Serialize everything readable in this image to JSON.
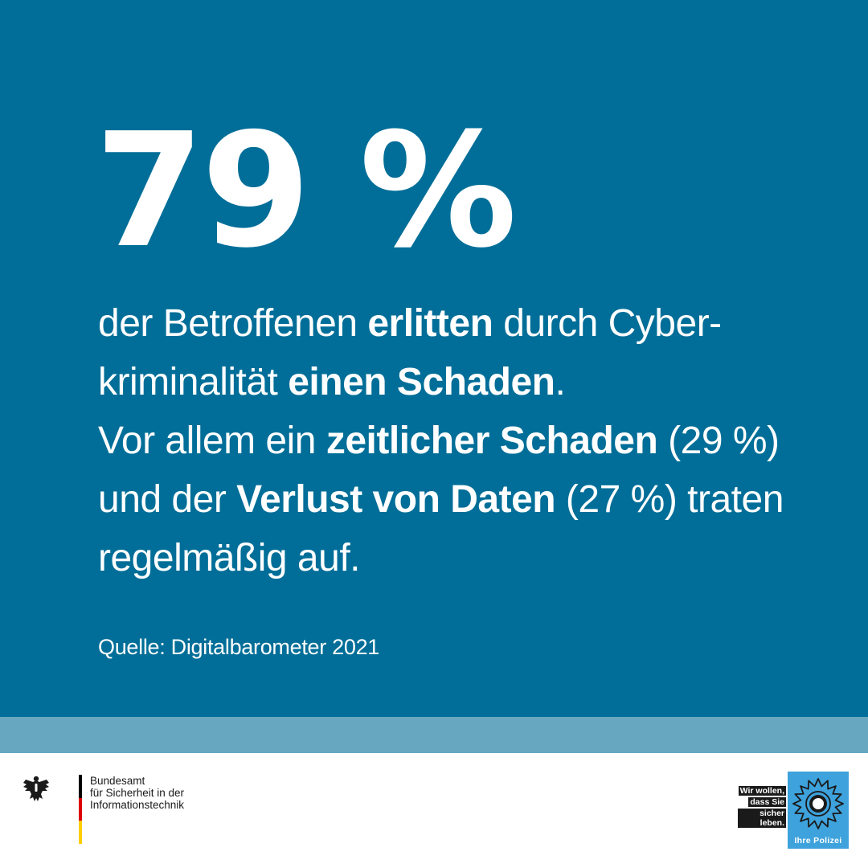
{
  "headline": {
    "stat": "79 %"
  },
  "body": {
    "l1_a": "der Betroffenen ",
    "l1_b": "erlitten",
    "l1_c": " durch Cyber-",
    "l2_a": "kriminalität ",
    "l2_b": "einen Schaden",
    "l2_c": ".",
    "l3_a": "Vor allem ein ",
    "l3_b": "zeitlicher Schaden",
    "l3_c": " (29 %)",
    "l4_a": "und der ",
    "l4_b": "Verlust von Daten",
    "l4_c": " (27 %) traten",
    "l5": "regelmäßig auf."
  },
  "source": "Quelle: Digitalbarometer 2021",
  "bsi": {
    "line1": "Bundesamt",
    "line2": "für Sicherheit in der",
    "line3": "Informationstechnik",
    "icon": "federal-eagle-icon"
  },
  "police": {
    "slogan_1": "Wir wollen,",
    "slogan_2": "dass Sie",
    "slogan_3": "sicher leben.",
    "name": "Ihre Polizei",
    "icon": "police-star-icon"
  },
  "colors": {
    "primary_blue": "#006e98",
    "stripe_blue": "#67a8c0",
    "police_blue": "#3ea2dc",
    "text": "#ffffff"
  }
}
